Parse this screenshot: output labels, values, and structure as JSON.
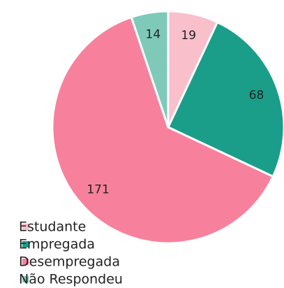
{
  "chart_data": {
    "type": "pie",
    "categories": [
      "Estudante",
      "Empregada",
      "Desempregada",
      "Não Respondeu"
    ],
    "values": [
      19,
      68,
      171,
      14
    ],
    "colors": [
      "#f9bfcb",
      "#1a9e8a",
      "#f7819c",
      "#7fc9b8"
    ],
    "legend": "bottom-left"
  }
}
